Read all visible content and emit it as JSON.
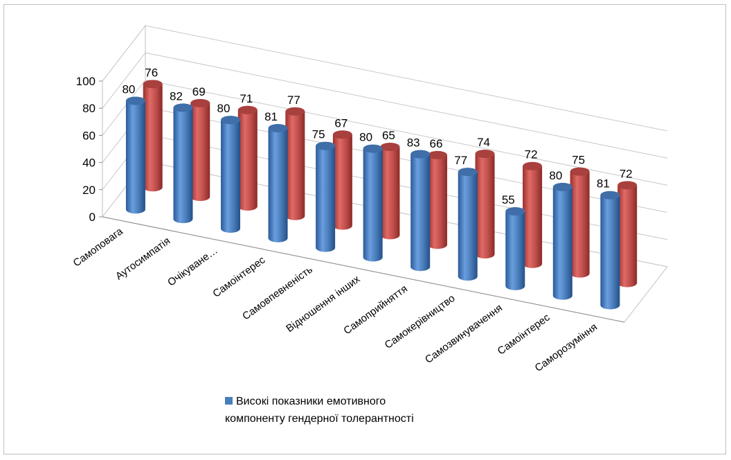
{
  "chart_data": {
    "type": "bar",
    "style": "3d-cylinder",
    "categories": [
      "Самоповага",
      "Аутосимпатія",
      "Очікуване…",
      "Самоінтерес",
      "Самовпевненість",
      "Відношення інших",
      "Самоприйняття",
      "Самокерівництво",
      "Самозвинувачення",
      "Самоінтерес",
      "Саморозуміння"
    ],
    "series": [
      {
        "name": "Високі показники емотивного компоненту гендерної толерантності",
        "color": "#4a7ebb",
        "values": [
          80,
          82,
          80,
          81,
          75,
          80,
          83,
          77,
          55,
          80,
          81
        ]
      },
      {
        "color": "#be4b48",
        "values": [
          76,
          69,
          71,
          77,
          67,
          65,
          66,
          74,
          72,
          75,
          72
        ]
      }
    ],
    "y_ticks": [
      "0",
      "20",
      "40",
      "60",
      "80",
      "100"
    ],
    "ylim": [
      0,
      100
    ],
    "grid": true,
    "legend_position": "bottom"
  }
}
